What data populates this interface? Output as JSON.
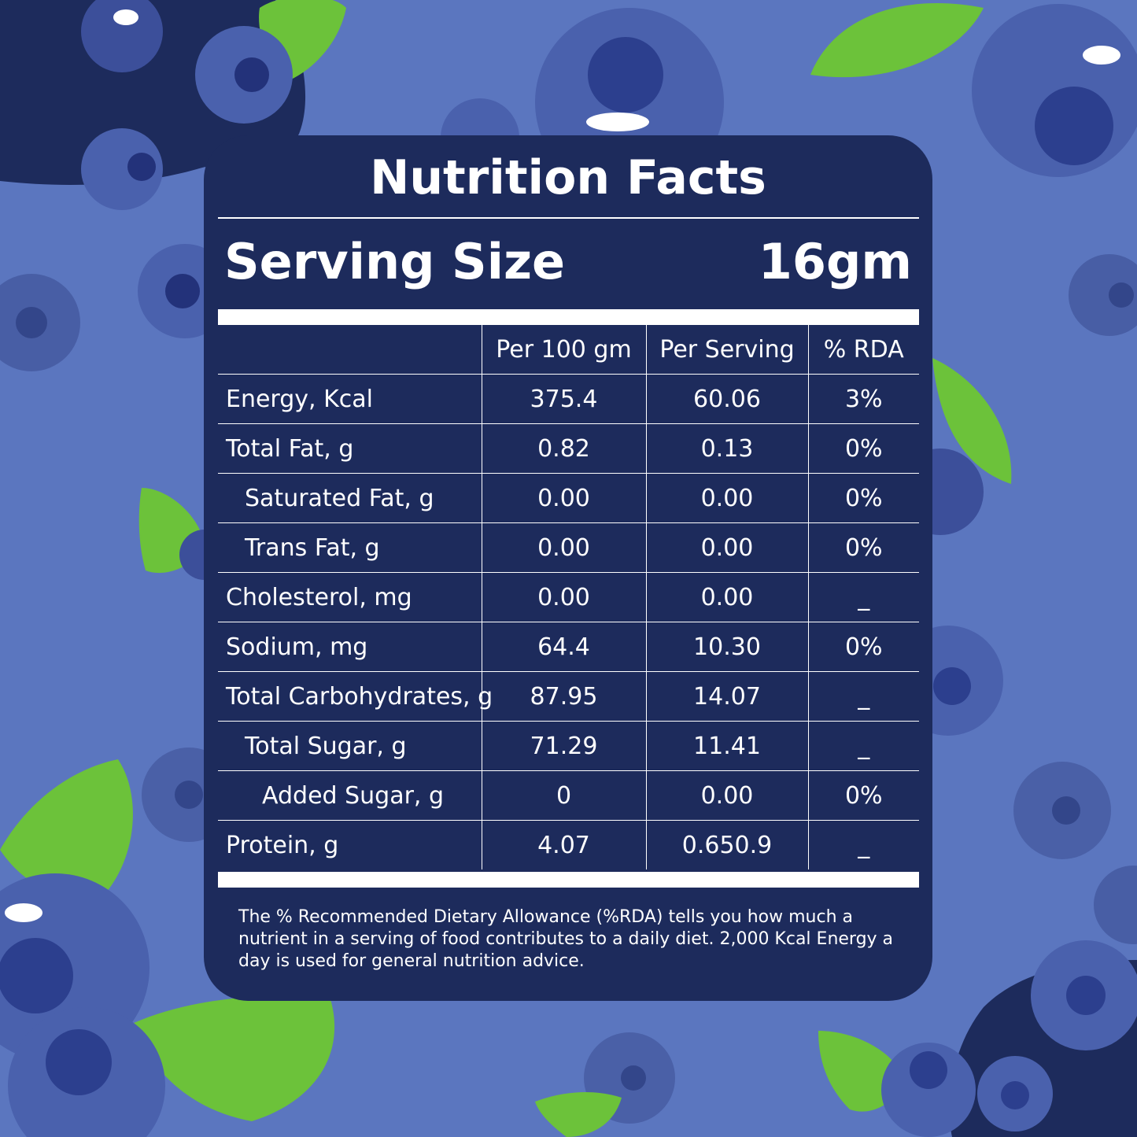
{
  "label": {
    "title": "Nutrition Facts",
    "serving_label": "Serving Size",
    "serving_value": "16gm"
  },
  "table": {
    "headers": [
      "",
      "Per 100 gm",
      "Per Serving",
      "% RDA"
    ],
    "rows": [
      {
        "name": "Energy, Kcal",
        "per100": "375.4",
        "perServing": "60.06",
        "rda": "3%"
      },
      {
        "name": "Total Fat, g",
        "per100": "0.82",
        "perServing": "0.13",
        "rda": "0%"
      },
      {
        "name": "Saturated Fat, g",
        "per100": "0.00",
        "perServing": "0.00",
        "rda": "0%"
      },
      {
        "name": "Trans Fat, g",
        "per100": "0.00",
        "perServing": "0.00",
        "rda": "0%"
      },
      {
        "name": "Cholesterol, mg",
        "per100": "0.00",
        "perServing": "0.00",
        "rda": "_"
      },
      {
        "name": "Sodium, mg",
        "per100": "64.4",
        "perServing": "10.30",
        "rda": "0%"
      },
      {
        "name": "Total Carbohydrates, g",
        "per100": "87.95",
        "perServing": "14.07",
        "rda": "_"
      },
      {
        "name": "Total Sugar, g",
        "per100": "71.29",
        "perServing": "11.41",
        "rda": "_"
      },
      {
        "name": "Added Sugar, g",
        "per100": "0",
        "perServing": "0.00",
        "rda": "0%"
      },
      {
        "name": "Protein, g",
        "per100": "4.07",
        "perServing": "0.650.9",
        "rda": "_"
      }
    ]
  },
  "footnote": "The % Recommended Dietary Allowance (%RDA) tells you how much a nutrient in a serving of food contributes to a daily diet. 2,000 Kcal Energy a day is used for general nutrition advice.",
  "colors": {
    "background": "#5b76bf",
    "card": "#1d2b5c",
    "text": "#ffffff",
    "berry": "#3c4f9a",
    "leaf": "#6cc23a"
  }
}
